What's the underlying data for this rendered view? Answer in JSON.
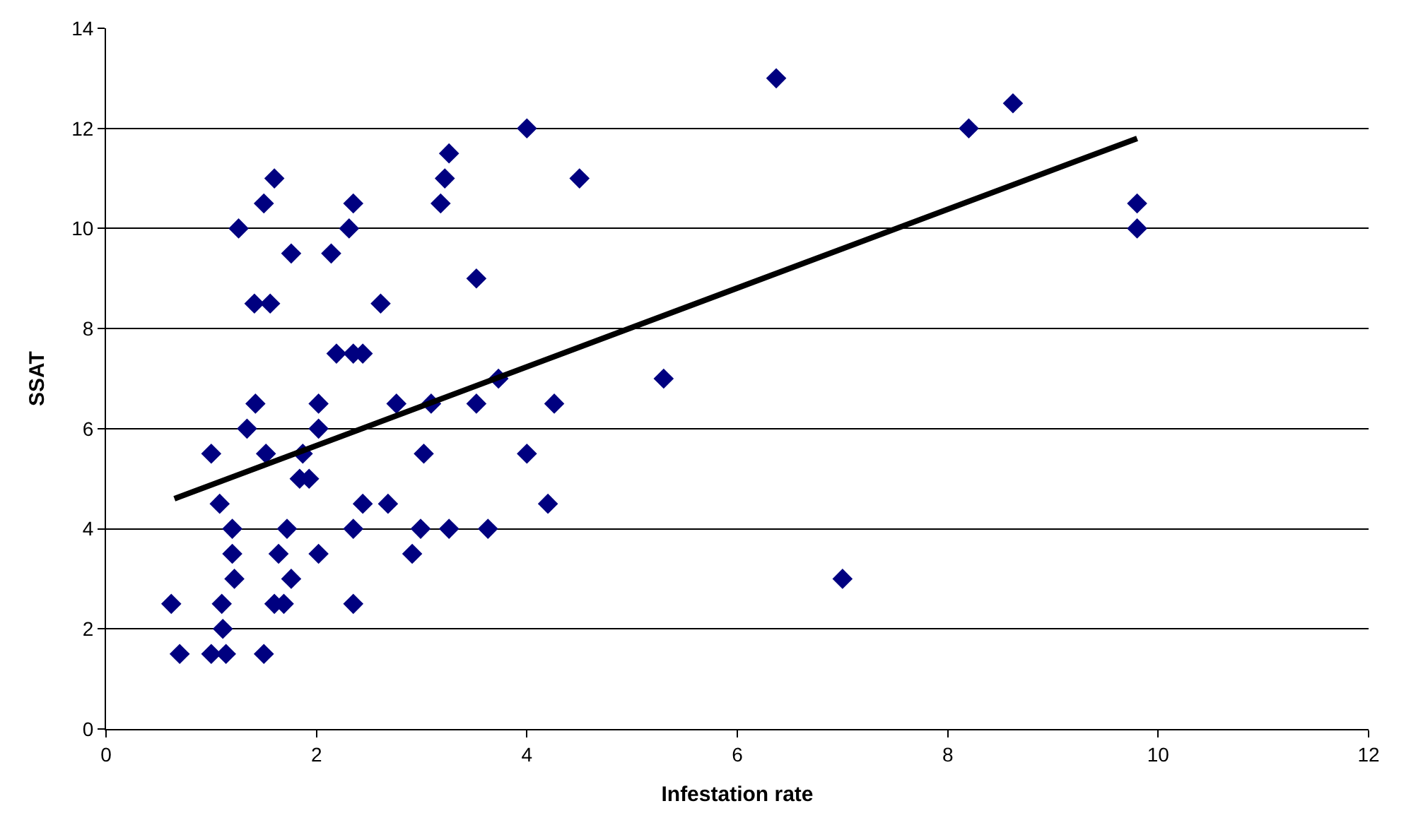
{
  "chart_data": {
    "type": "scatter",
    "xlabel": "Infestation rate",
    "ylabel": "SSAT",
    "xlim": [
      0,
      12
    ],
    "ylim": [
      0,
      14
    ],
    "xticks": [
      0,
      2,
      4,
      6,
      8,
      10,
      12
    ],
    "yticks": [
      0,
      2,
      4,
      6,
      8,
      10,
      12,
      14
    ],
    "grid": "y",
    "marker": "diamond",
    "series": [
      {
        "color": "#000080",
        "x": [
          0.62,
          0.7,
          1.0,
          1.14,
          1.5,
          1.11,
          1.1,
          1.22,
          1.2,
          1.2,
          1.08,
          1.0,
          1.34,
          1.42,
          1.52,
          1.26,
          1.41,
          1.56,
          1.5,
          1.6,
          1.6,
          1.69,
          1.64,
          1.72,
          1.76,
          1.76,
          1.84,
          1.87,
          1.93,
          2.02,
          2.02,
          2.02,
          2.14,
          2.19,
          2.31,
          2.35,
          2.35,
          2.44,
          2.35,
          2.35,
          2.44,
          2.61,
          2.68,
          2.76,
          2.91,
          2.99,
          3.02,
          3.09,
          3.18,
          3.22,
          3.26,
          3.26,
          3.52,
          3.52,
          3.63,
          3.73,
          4.0,
          4.0,
          4.2,
          4.26,
          4.5,
          5.3,
          6.37,
          7.0,
          8.2,
          8.62,
          9.8,
          9.8
        ],
        "values": [
          2.5,
          1.5,
          1.5,
          1.5,
          1.5,
          2.0,
          2.5,
          3.0,
          3.5,
          4.0,
          4.5,
          5.5,
          6.0,
          6.5,
          5.5,
          10.0,
          8.5,
          8.5,
          10.5,
          11.0,
          2.5,
          2.5,
          3.5,
          4.0,
          3.0,
          9.5,
          5.0,
          5.5,
          5.0,
          6.0,
          6.5,
          3.5,
          9.5,
          7.5,
          10.0,
          10.5,
          7.5,
          7.5,
          4.0,
          2.5,
          4.5,
          8.5,
          4.5,
          6.5,
          3.5,
          4.0,
          5.5,
          6.5,
          10.5,
          11.0,
          11.5,
          4.0,
          9.0,
          6.5,
          4.0,
          7.0,
          12.0,
          5.5,
          4.5,
          6.5,
          11.0,
          7.0,
          13.0,
          3.0,
          12.0,
          12.5,
          10.5,
          10.0
        ]
      },
      {
        "type": "line",
        "marker": "none",
        "color": "#000000",
        "x": [
          0.65,
          9.8
        ],
        "values": [
          4.6,
          11.8
        ]
      }
    ]
  }
}
